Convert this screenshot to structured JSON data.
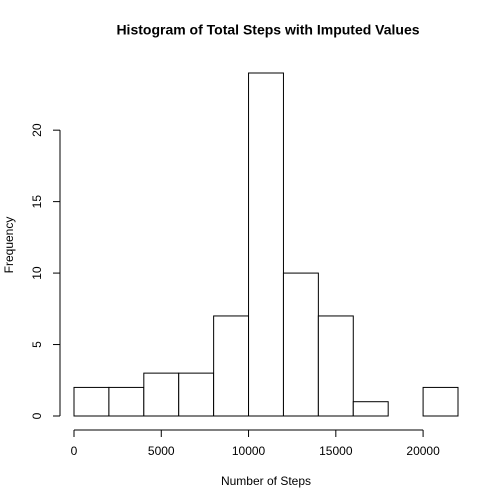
{
  "chart_data": {
    "type": "histogram",
    "title": "Histogram of Total Steps with Imputed Values",
    "x_label": "Number of Steps",
    "y_label": "Frequency",
    "bins": [
      0,
      2000,
      4000,
      6000,
      8000,
      10000,
      12000,
      14000,
      16000,
      18000,
      20000,
      22000
    ],
    "values": [
      2,
      2,
      3,
      3,
      7,
      24,
      10,
      7,
      1,
      0,
      2
    ],
    "color": "#ffffff",
    "xlim": [
      0,
      22000
    ],
    "xticks": [
      0,
      5000,
      10000,
      15000,
      20000
    ],
    "ylim": [
      0,
      24
    ],
    "yticks": [
      0,
      5,
      10,
      15,
      20
    ]
  }
}
